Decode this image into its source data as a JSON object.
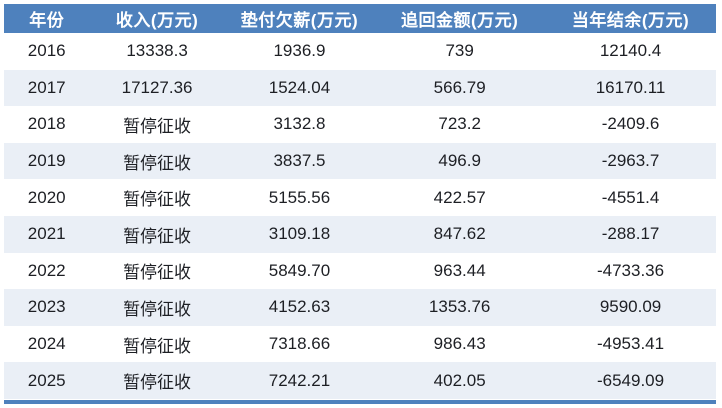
{
  "colors": {
    "header_bg": "#4E81BD",
    "header_text": "#FFFFFF",
    "row_bg": "#FFFFFF",
    "row_alt_bg": "#EAEFF6",
    "body_text": "#1D1F24",
    "bottom_bar": "#4E81BD"
  },
  "table": {
    "headers": [
      "年份",
      "收入(万元)",
      "垫付欠薪(万元)",
      "追回金额(万元)",
      "当年结余(万元)"
    ],
    "rows": [
      [
        "2016",
        "13338.3",
        "1936.9",
        "739",
        "12140.4"
      ],
      [
        "2017",
        "17127.36",
        "1524.04",
        "566.79",
        "16170.11"
      ],
      [
        "2018",
        "暂停征收",
        "3132.8",
        "723.2",
        "-2409.6"
      ],
      [
        "2019",
        "暂停征收",
        "3837.5",
        "496.9",
        "-2963.7"
      ],
      [
        "2020",
        "暂停征收",
        "5155.56",
        "422.57",
        "-4551.4"
      ],
      [
        "2021",
        "暂停征收",
        "3109.18",
        "847.62",
        "-288.17"
      ],
      [
        "2022",
        "暂停征收",
        "5849.70",
        "963.44",
        "-4733.36"
      ],
      [
        "2023",
        "暂停征收",
        "4152.63",
        "1353.76",
        "9590.09"
      ],
      [
        "2024",
        "暂停征收",
        "7318.66",
        "986.43",
        "-4953.41"
      ],
      [
        "2025",
        "暂停征收",
        "7242.21",
        "402.05",
        "-6549.09"
      ]
    ]
  },
  "chart_data": {
    "type": "table",
    "columns": [
      "年份",
      "收入(万元)",
      "垫付欠薪(万元)",
      "追回金额(万元)",
      "当年结余(万元)"
    ],
    "rows": [
      [
        2016,
        13338.3,
        1936.9,
        739,
        12140.4
      ],
      [
        2017,
        17127.36,
        1524.04,
        566.79,
        16170.11
      ],
      [
        2018,
        "暂停征收",
        3132.8,
        723.2,
        -2409.6
      ],
      [
        2019,
        "暂停征收",
        3837.5,
        496.9,
        -2963.7
      ],
      [
        2020,
        "暂停征收",
        5155.56,
        422.57,
        -4551.4
      ],
      [
        2021,
        "暂停征收",
        3109.18,
        847.62,
        -288.17
      ],
      [
        2022,
        "暂停征收",
        5849.7,
        963.44,
        -4733.36
      ],
      [
        2023,
        "暂停征收",
        4152.63,
        1353.76,
        9590.09
      ],
      [
        2024,
        "暂停征收",
        7318.66,
        986.43,
        -4953.41
      ],
      [
        2025,
        "暂停征收",
        7242.21,
        402.05,
        -6549.09
      ]
    ],
    "layout": {
      "header_style": "solid blue banner, white bold text",
      "row_striping": "white / light blue alternating",
      "bottom_accent_bar": true
    }
  }
}
